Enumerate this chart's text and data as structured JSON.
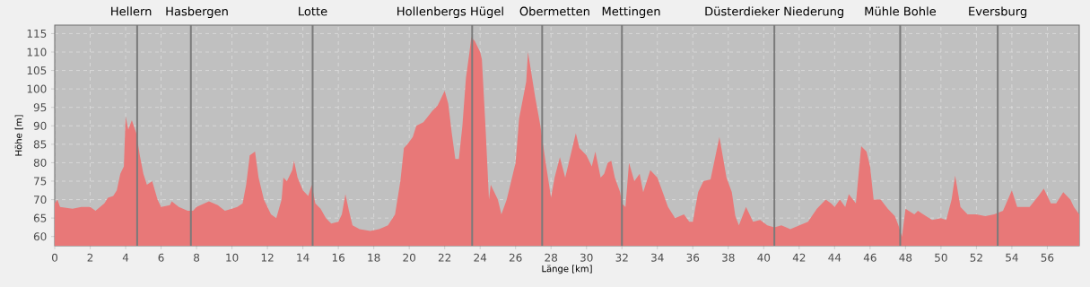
{
  "chart_data": {
    "type": "area",
    "xlabel": "Länge [km]",
    "ylabel": "Höhe [m]",
    "x": [
      0,
      0.15,
      0.3,
      1,
      1.5,
      2,
      2.3,
      2.8,
      3,
      3.3,
      3.5,
      3.7,
      3.9,
      4.0,
      4.15,
      4.35,
      4.6,
      4.8,
      5.0,
      5.2,
      5.5,
      5.8,
      6.0,
      6.5,
      6.6,
      7.0,
      7.5,
      7.8,
      8.0,
      8.7,
      9.2,
      9.6,
      10,
      10.3,
      10.6,
      10.8,
      11.0,
      11.3,
      11.5,
      11.8,
      12.2,
      12.5,
      12.8,
      12.9,
      13.1,
      13.4,
      13.5,
      13.7,
      14,
      14.3,
      14.5,
      14.7,
      15,
      15.3,
      15.6,
      16,
      16.2,
      16.4,
      16.6,
      16.8,
      17.2,
      17.8,
      18.3,
      18.8,
      19.2,
      19.5,
      19.7,
      19.9,
      20.2,
      20.4,
      20.8,
      21.3,
      21.6,
      22.0,
      22.2,
      22.4,
      22.6,
      22.8,
      23.0,
      23.2,
      23.4,
      23.5,
      23.7,
      24.0,
      24.1,
      24.3,
      24.5,
      24.6,
      25,
      25.2,
      25.5,
      25.8,
      26.0,
      26.2,
      26.4,
      26.6,
      26.7,
      26.9,
      27.1,
      27.4,
      27.7,
      28.0,
      28.2,
      28.5,
      28.8,
      29.2,
      29.4,
      29.6,
      30,
      30.3,
      30.5,
      30.8,
      31,
      31.2,
      31.4,
      31.6,
      31.9,
      32,
      32.2,
      32.4,
      32.7,
      33,
      33.2,
      33.6,
      34.0,
      34.3,
      34.6,
      35.0,
      35.5,
      35.8,
      36.0,
      36.3,
      36.6,
      37.0,
      37.5,
      37.9,
      38.2,
      38.4,
      38.6,
      39.0,
      39.4,
      39.8,
      40.2,
      40.6,
      41.0,
      41.5,
      42.0,
      42.5,
      43,
      43.5,
      43.8,
      44,
      44.3,
      44.6,
      44.8,
      45.2,
      45.5,
      45.8,
      46.0,
      46.2,
      46.6,
      47.0,
      47.4,
      47.6,
      47.8,
      48.0,
      48.5,
      48.7,
      49.0,
      49.5,
      50,
      50.3,
      50.6,
      50.8,
      51.1,
      51.5,
      52,
      52.5,
      53,
      53.5,
      54,
      54.3,
      54.6,
      55,
      55.5,
      55.8,
      56.2,
      56.5,
      56.9,
      57.3,
      57.5,
      57.8
    ],
    "series": [
      {
        "color": "#e87878",
        "values": [
          69,
          70,
          68,
          67.5,
          68,
          68,
          67,
          69,
          70.5,
          71,
          72.5,
          77,
          79,
          92.5,
          89,
          91.5,
          88,
          82,
          77,
          74,
          75,
          70,
          68,
          68.5,
          69.5,
          68,
          67,
          67,
          68,
          69.5,
          68.5,
          67,
          67.5,
          68,
          69,
          74,
          82,
          83,
          76,
          70,
          66,
          65,
          70,
          76,
          75,
          78,
          80.5,
          76,
          72.5,
          71,
          74,
          69,
          67.5,
          65,
          63.5,
          64,
          66,
          71.5,
          67,
          63,
          62,
          61.5,
          62,
          63,
          66,
          75,
          84,
          85,
          87,
          90,
          91,
          94,
          95.5,
          99.5,
          96,
          88,
          81,
          81,
          90,
          103,
          110,
          114,
          113,
          110,
          108,
          90,
          70,
          74,
          70,
          66,
          70,
          76,
          80,
          92,
          97,
          102,
          110,
          104,
          98,
          90,
          80,
          70.5,
          76,
          81.5,
          76,
          84,
          88,
          84,
          82,
          79,
          83,
          76,
          77,
          80,
          80.5,
          76,
          72,
          69,
          68,
          80,
          75,
          77,
          72,
          78,
          76,
          72,
          68,
          65,
          66,
          64,
          64,
          72,
          75,
          75.5,
          87,
          76,
          72,
          65.5,
          63,
          68,
          64,
          64.5,
          63,
          62.5,
          63,
          62,
          63,
          64,
          67.5,
          70,
          69,
          68,
          70,
          68,
          71.5,
          69,
          84.5,
          83,
          79,
          70,
          70,
          67.5,
          65.5,
          63,
          60,
          67.5,
          66,
          67,
          66,
          64.5,
          65,
          64.5,
          70,
          76.5,
          68,
          66,
          66,
          65.5,
          66,
          67,
          72.5,
          68,
          68,
          68,
          71,
          73,
          69,
          69,
          72,
          70,
          68,
          66
        ]
      }
    ],
    "xlim": [
      0,
      57.8
    ],
    "ylim": [
      57.5,
      117.3
    ],
    "xticks": [
      0,
      2,
      4,
      6,
      8,
      10,
      12,
      14,
      16,
      18,
      20,
      22,
      24,
      26,
      28,
      30,
      32,
      34,
      36,
      38,
      40,
      42,
      44,
      46,
      48,
      50,
      52,
      54,
      56
    ],
    "yticks": [
      60,
      65,
      70,
      75,
      80,
      85,
      90,
      95,
      100,
      105,
      110,
      115
    ],
    "grid": true,
    "ref_lines": [
      {
        "axis": "x",
        "value": 4.65,
        "label": "Hellern",
        "color": "#7a7a7a"
      },
      {
        "axis": "x",
        "value": 7.68,
        "label": "Hasbergen",
        "color": "#7a7a7a"
      },
      {
        "axis": "x",
        "value": 14.55,
        "label": "Lotte",
        "color": "#7a7a7a"
      },
      {
        "axis": "x",
        "value": 23.55,
        "label": "Hollenbergs Hügel",
        "color": "#7a7a7a"
      },
      {
        "axis": "x",
        "value": 27.5,
        "label": "Obermetten",
        "color": "#7a7a7a"
      },
      {
        "axis": "x",
        "value": 32.0,
        "label": "Mettingen",
        "color": "#7a7a7a"
      },
      {
        "axis": "x",
        "value": 40.6,
        "label": "Düsterdieker Niederung",
        "color": "#7a7a7a"
      },
      {
        "axis": "x",
        "value": 47.7,
        "label": "Mühle Bohle",
        "color": "#7a7a7a"
      },
      {
        "axis": "x",
        "value": 53.2,
        "label": "Eversburg",
        "color": "#7a7a7a"
      }
    ]
  }
}
